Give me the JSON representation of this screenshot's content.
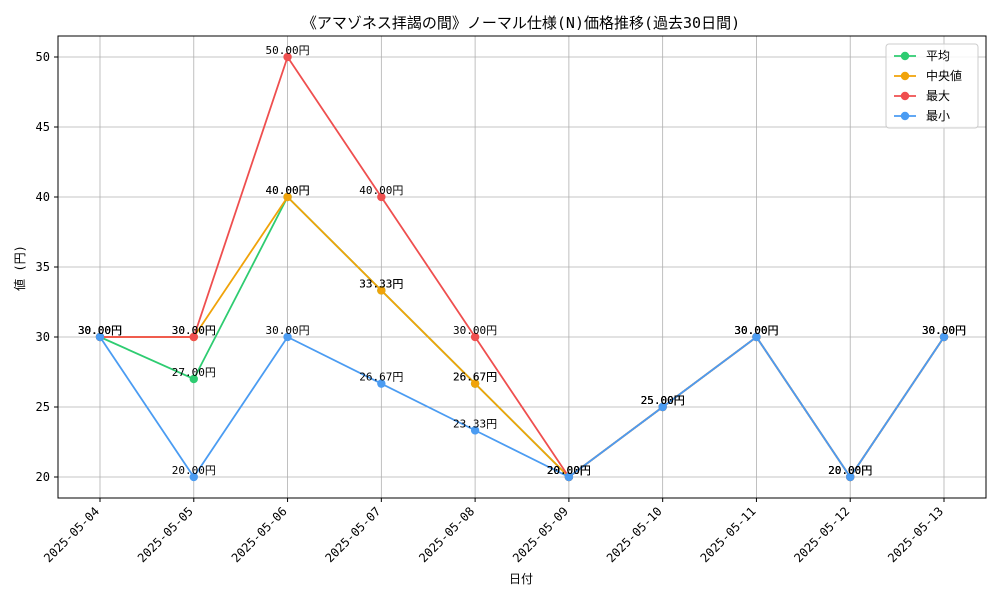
{
  "chart_data": {
    "type": "line",
    "title": "《アマゾネス拝謁の間》ノーマル仕様(N)価格推移(過去30日間)",
    "xlabel": "日付",
    "ylabel": "値 (円)",
    "ylim": [
      18.5,
      51.5
    ],
    "yticks": [
      20,
      25,
      30,
      35,
      40,
      45,
      50
    ],
    "grid": true,
    "legend_position": "top-right",
    "categories": [
      "2025-05-04",
      "2025-05-05",
      "2025-05-06",
      "2025-05-07",
      "2025-05-08",
      "2025-05-09",
      "2025-05-10",
      "2025-05-11",
      "2025-05-12",
      "2025-05-13"
    ],
    "series": [
      {
        "name": "平均",
        "color": "#2ecc71",
        "values": [
          30.0,
          27.0,
          40.0,
          33.33,
          26.67,
          20.0,
          25.0,
          30.0,
          20.0,
          30.0
        ]
      },
      {
        "name": "中央値",
        "color": "#f0a30a",
        "values": [
          30.0,
          30.0,
          40.0,
          33.33,
          26.67,
          20.0,
          25.0,
          30.0,
          20.0,
          30.0
        ]
      },
      {
        "name": "最大",
        "color": "#ef4f4f",
        "values": [
          30.0,
          30.0,
          50.0,
          40.0,
          30.0,
          20.0,
          25.0,
          30.0,
          20.0,
          30.0
        ]
      },
      {
        "name": "最小",
        "color": "#4b9cf2",
        "values": [
          30.0,
          20.0,
          30.0,
          26.67,
          23.33,
          20.0,
          25.0,
          30.0,
          20.0,
          30.0
        ]
      }
    ],
    "value_suffix": "円"
  }
}
